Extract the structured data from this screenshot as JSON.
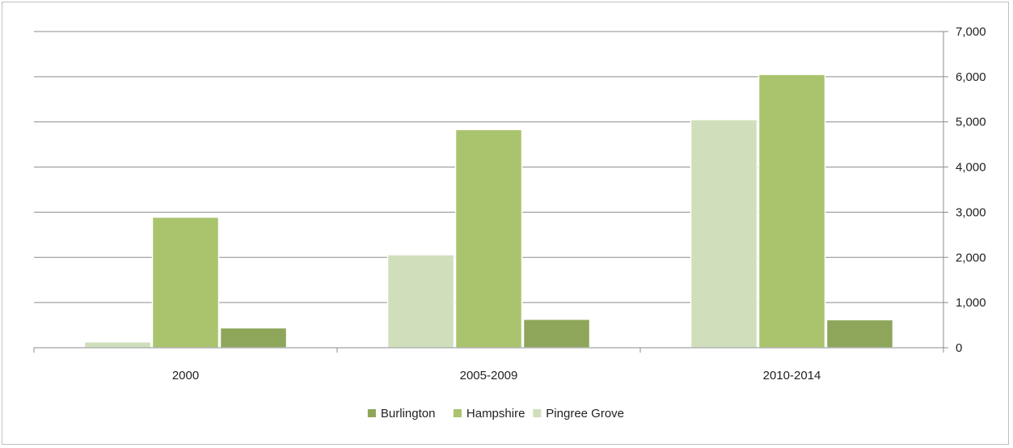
{
  "chart_data": {
    "type": "bar",
    "title": "",
    "xlabel": "",
    "ylabel": "",
    "categories": [
      "2000",
      "2005-2009",
      "2010-2014"
    ],
    "series": [
      {
        "name": "Pingree Grove",
        "values": [
          130,
          2060,
          5050
        ],
        "color": "#cfdfbb"
      },
      {
        "name": "Hampshire",
        "values": [
          2890,
          4830,
          6050
        ],
        "color": "#a9c46d"
      },
      {
        "name": "Burlington",
        "values": [
          440,
          630,
          620
        ],
        "color": "#8ea65a"
      }
    ],
    "ylim": [
      0,
      7000
    ],
    "yticks": [
      0,
      1000,
      2000,
      3000,
      4000,
      5000,
      6000,
      7000
    ],
    "ytick_labels": [
      "0",
      "1,000",
      "2,000",
      "3,000",
      "4,000",
      "5,000",
      "6,000",
      "7,000"
    ],
    "y_axis_side": "right",
    "grid": true,
    "legend": {
      "position": "bottom",
      "entries": [
        "Burlington",
        "Hampshire",
        "Pingree Grove"
      ]
    }
  }
}
